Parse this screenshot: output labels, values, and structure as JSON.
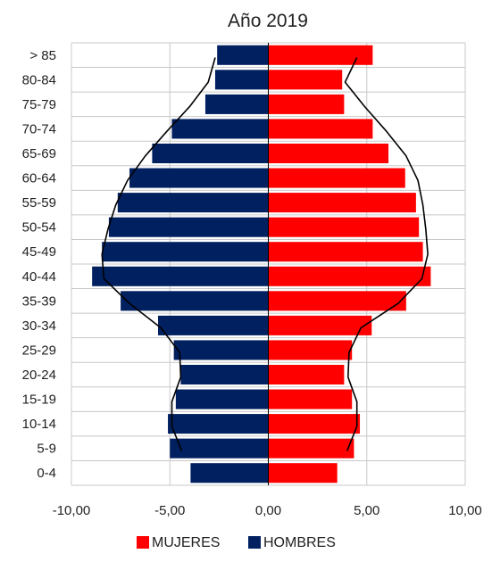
{
  "chart_data": {
    "type": "bar",
    "orientation": "horizontal",
    "title": "Año 2019",
    "categories": [
      "> 85",
      "80-84",
      "75-79",
      "70-74",
      "65-69",
      "60-64",
      "55-59",
      "50-54",
      "45-49",
      "40-44",
      "35-39",
      "30-34",
      "25-29",
      "20-24",
      "15-19",
      "10-14",
      "5-9",
      "0-4"
    ],
    "xlim": [
      -10,
      10
    ],
    "xticks": [
      "-10,00",
      "-5,00",
      "0,00",
      "5,00",
      "10,00"
    ],
    "grid": true,
    "legend_position": "bottom",
    "series": [
      {
        "name": "MUJERES",
        "color": "#ff0000",
        "values": [
          5.3,
          3.75,
          3.85,
          5.3,
          6.1,
          6.95,
          7.5,
          7.65,
          7.85,
          8.25,
          7.0,
          5.25,
          4.25,
          3.85,
          4.25,
          4.65,
          4.35,
          3.5
        ]
      },
      {
        "name": "HOMBRES",
        "color": "#002060",
        "values": [
          -2.6,
          -2.7,
          -3.2,
          -4.9,
          -5.9,
          -7.05,
          -7.65,
          -8.1,
          -8.45,
          -8.95,
          -7.5,
          -5.6,
          -4.8,
          -4.45,
          -4.7,
          -5.1,
          -5.0,
          -3.95
        ]
      }
    ],
    "overlay_lines": [
      {
        "color": "#000000",
        "values": [
          4.5,
          3.9,
          4.9,
          6.0,
          7.0,
          7.6,
          7.85,
          8.0,
          8.1,
          7.8,
          6.6,
          4.7,
          4.1,
          4.05,
          4.5,
          4.5,
          4.0
        ]
      },
      {
        "color": "#000000",
        "values": [
          -2.7,
          -3.05,
          -4.0,
          -5.15,
          -6.25,
          -7.15,
          -7.75,
          -8.15,
          -8.45,
          -8.35,
          -7.05,
          -5.45,
          -4.5,
          -4.45,
          -4.9,
          -4.9,
          -4.4
        ]
      }
    ]
  }
}
